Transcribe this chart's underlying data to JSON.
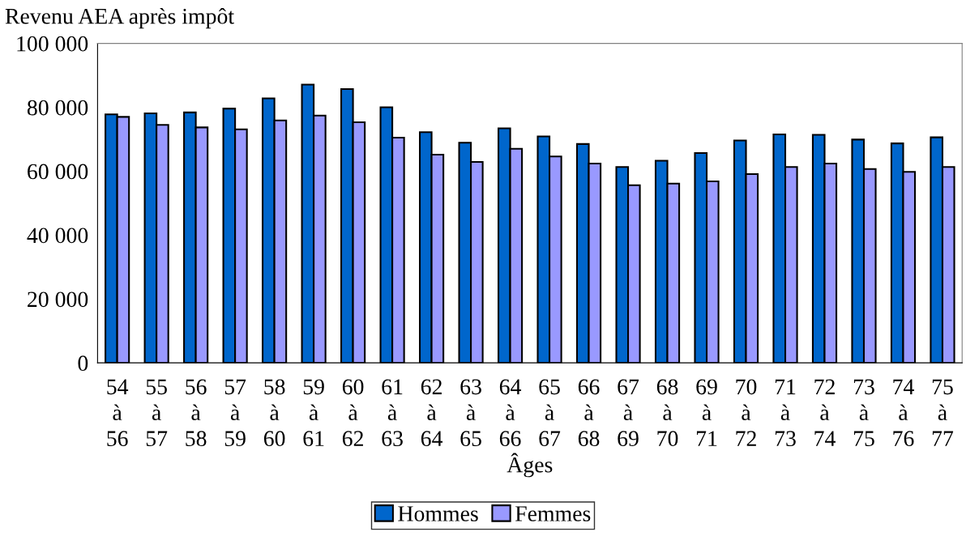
{
  "chart_data": {
    "type": "bar",
    "ylabel": "Revenu AEA après impôt",
    "xlabel": "Âges",
    "categories": [
      "54\nà\n56",
      "55\nà\n57",
      "56\nà\n58",
      "57\nà\n59",
      "58\nà\n60",
      "59\nà\n61",
      "60\nà\n62",
      "61\nà\n63",
      "62\nà\n64",
      "63\nà\n65",
      "64\nà\n66",
      "65\nà\n67",
      "66\nà\n68",
      "67\nà\n69",
      "68\nà\n70",
      "69\nà\n71",
      "70\nà\n72",
      "71\nà\n73",
      "72\nà\n74",
      "73\nà\n75",
      "74\nà\n76",
      "75\nà\n77"
    ],
    "series": [
      {
        "name": "Hommes",
        "color": "#0066cc",
        "values": [
          77800,
          78100,
          78400,
          79600,
          82800,
          87100,
          85700,
          80000,
          72200,
          68900,
          73400,
          70900,
          68500,
          61300,
          63300,
          65700,
          69600,
          71500,
          71400,
          69900,
          68700,
          70600
        ]
      },
      {
        "name": "Femmes",
        "color": "#9999ff",
        "values": [
          77000,
          74500,
          73700,
          73100,
          75900,
          77400,
          75300,
          70500,
          65200,
          62900,
          67000,
          64600,
          62400,
          55600,
          56100,
          56800,
          59100,
          61300,
          62400,
          60700,
          59800,
          61300
        ]
      }
    ],
    "ylim": [
      0,
      100000
    ],
    "yticks": [
      {
        "value": 0,
        "label": "0"
      },
      {
        "value": 20000,
        "label": "20 000"
      },
      {
        "value": 40000,
        "label": "40 000"
      },
      {
        "value": 60000,
        "label": "60 000"
      },
      {
        "value": 80000,
        "label": "80 000"
      },
      {
        "value": 100000,
        "label": "100 000"
      }
    ],
    "grid": false,
    "legend": "bottom"
  }
}
